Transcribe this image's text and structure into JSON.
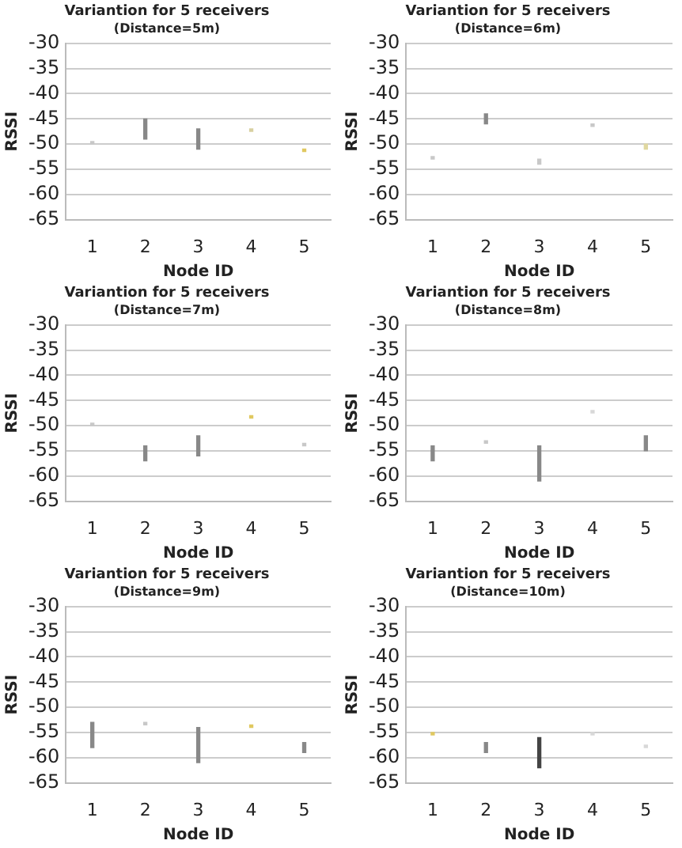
{
  "chart_data": [
    {
      "type": "bar",
      "title": "Variantion for 5 receivers",
      "subtitle": "(Distance=5m)",
      "xlabel": "Node ID",
      "ylabel": "RSSI",
      "categories": [
        "1",
        "2",
        "3",
        "4",
        "5"
      ],
      "base": [
        -50,
        -49,
        -51,
        -47.5,
        -51.5
      ],
      "values": [
        0.5,
        4,
        4,
        0.5,
        0.5
      ],
      "colors": [
        "#c8c8c8",
        "#888888",
        "#888888",
        "#d8d0a0",
        "#e0c860"
      ],
      "ylim": [
        -65,
        -30
      ],
      "yticks": [
        -65,
        -60,
        -55,
        -50,
        -45,
        -40,
        -35,
        -30
      ],
      "grid": "y"
    },
    {
      "type": "bar",
      "title": "Variantion for 5 receivers",
      "subtitle": "(Distance=6m)",
      "xlabel": "Node ID",
      "ylabel": "RSSI",
      "categories": [
        "1",
        "2",
        "3",
        "4",
        "5"
      ],
      "base": [
        -53,
        -46,
        -54,
        -46.5,
        -51
      ],
      "values": [
        0.5,
        2,
        1,
        0.5,
        1
      ],
      "colors": [
        "#c8c8c8",
        "#888888",
        "#c8c8c8",
        "#c8c8c8",
        "#e0d8a0"
      ],
      "ylim": [
        -65,
        -30
      ],
      "yticks": [
        -65,
        -60,
        -55,
        -50,
        -45,
        -40,
        -35,
        -30
      ],
      "grid": "y"
    },
    {
      "type": "bar",
      "title": "Variantion for 5 receivers",
      "subtitle": "(Distance=7m)",
      "xlabel": "Node ID",
      "ylabel": "RSSI",
      "categories": [
        "1",
        "2",
        "3",
        "4",
        "5"
      ],
      "base": [
        -50,
        -57,
        -56,
        -48.5,
        -54
      ],
      "values": [
        0.5,
        3,
        4,
        0.5,
        0.5
      ],
      "colors": [
        "#c8c8c8",
        "#888888",
        "#888888",
        "#e0c860",
        "#c8c8c8"
      ],
      "ylim": [
        -65,
        -30
      ],
      "yticks": [
        -65,
        -60,
        -55,
        -50,
        -45,
        -40,
        -35,
        -30
      ],
      "grid": "y"
    },
    {
      "type": "bar",
      "title": "Variantion for 5 receivers",
      "subtitle": "(Distance=8m)",
      "xlabel": "Node ID",
      "ylabel": "RSSI",
      "categories": [
        "1",
        "2",
        "3",
        "4",
        "5"
      ],
      "base": [
        -57,
        -53.5,
        -61,
        -47.5,
        -55
      ],
      "values": [
        3,
        0.5,
        7,
        0.5,
        3
      ],
      "colors": [
        "#888888",
        "#c8c8c8",
        "#888888",
        "#d8d8d8",
        "#888888"
      ],
      "ylim": [
        -65,
        -30
      ],
      "yticks": [
        -65,
        -60,
        -55,
        -50,
        -45,
        -40,
        -35,
        -30
      ],
      "grid": "y"
    },
    {
      "type": "bar",
      "title": "Variantion for 5 receivers",
      "subtitle": "(Distance=9m)",
      "xlabel": "Node ID",
      "ylabel": "RSSI",
      "categories": [
        "1",
        "2",
        "3",
        "4",
        "5"
      ],
      "base": [
        -58,
        -53.5,
        -61,
        -54,
        -59
      ],
      "values": [
        5,
        0.5,
        7,
        0.5,
        2
      ],
      "colors": [
        "#888888",
        "#c8c8c8",
        "#888888",
        "#e0c860",
        "#888888"
      ],
      "ylim": [
        -65,
        -30
      ],
      "yticks": [
        -65,
        -60,
        -55,
        -50,
        -45,
        -40,
        -35,
        -30
      ],
      "grid": "y"
    },
    {
      "type": "bar",
      "title": "Variantion for 5 receivers",
      "subtitle": "(Distance=10m)",
      "xlabel": "Node ID",
      "ylabel": "RSSI",
      "categories": [
        "1",
        "2",
        "3",
        "4",
        "5"
      ],
      "base": [
        -55.5,
        -59,
        -62,
        -55.5,
        -58
      ],
      "values": [
        0.5,
        2,
        6,
        0.5,
        0.5
      ],
      "colors": [
        "#e0c860",
        "#888888",
        "#444444",
        "#d8d8d8",
        "#d8d8d8"
      ],
      "ylim": [
        -65,
        -30
      ],
      "yticks": [
        -65,
        -60,
        -55,
        -50,
        -45,
        -40,
        -35,
        -30
      ],
      "grid": "y"
    }
  ]
}
